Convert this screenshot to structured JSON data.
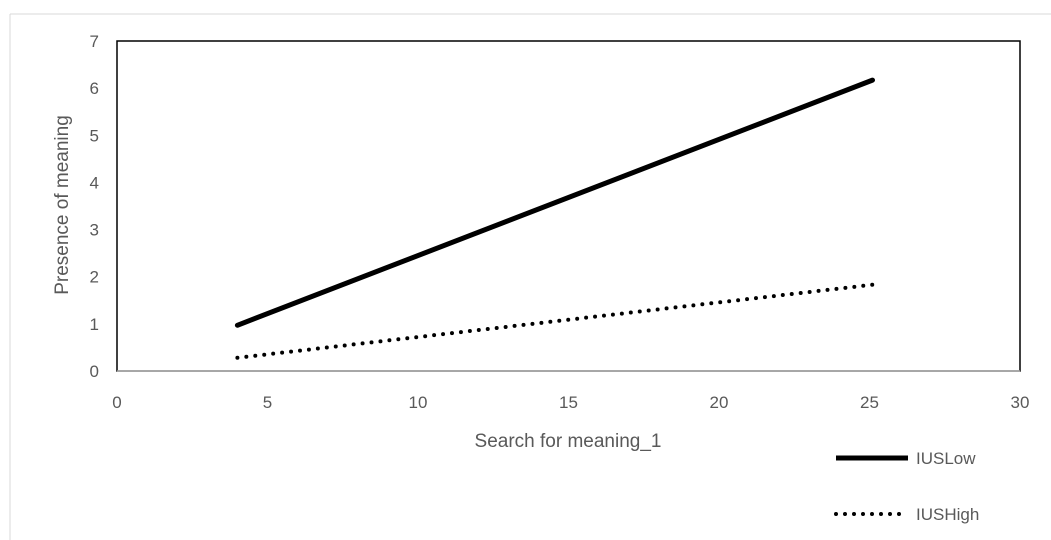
{
  "chart_data": {
    "type": "line",
    "title": "",
    "xlabel": "Search for meaning_1",
    "ylabel": "Presence of meaning",
    "xlim": [
      0,
      30
    ],
    "ylim": [
      0,
      7
    ],
    "xticks": [
      0,
      5,
      10,
      15,
      20,
      25,
      30
    ],
    "yticks": [
      0,
      1,
      2,
      3,
      4,
      5,
      6,
      7
    ],
    "grid": false,
    "legend_position": "bottom-right",
    "series": [
      {
        "name": "IUSLow",
        "style": "solid",
        "color": "#000000",
        "x": [
          4,
          25.1
        ],
        "y": [
          0.97,
          6.17
        ]
      },
      {
        "name": "IUSHigh",
        "style": "dotted",
        "color": "#000000",
        "x": [
          4,
          25.1
        ],
        "y": [
          0.28,
          1.83
        ]
      }
    ]
  }
}
